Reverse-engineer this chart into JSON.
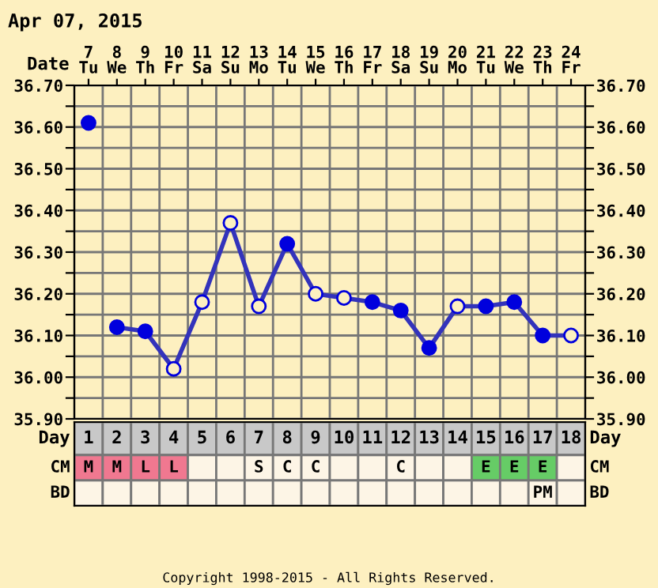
{
  "chart_data": [
    {
      "type": "line",
      "title": "Apr 07, 2015",
      "xlabel": "Date",
      "categories": [
        "7\nTu",
        "8\nWe",
        "9\nTh",
        "10\nFr",
        "11\nSa",
        "12\nSu",
        "13\nMo",
        "14\nTu",
        "15\nWe",
        "16\nTh",
        "17\nFr",
        "18\nSa",
        "19\nSu",
        "20\nMo",
        "21\nTu",
        "22\nWe",
        "23\nTh",
        "24\nFr"
      ],
      "series": [
        {
          "color": "#3333bb",
          "marker": "none",
          "values": [
            null,
            36.12,
            36.11,
            36.02,
            36.18,
            36.37,
            36.17,
            36.32,
            36.2,
            36.19,
            36.18,
            36.16,
            36.07,
            36.17,
            36.17,
            36.18,
            36.1,
            36.1
          ]
        },
        {
          "type": "scatter",
          "color": "#0000dd",
          "marker": "circle",
          "values": [
            36.61,
            36.12,
            36.11,
            null,
            null,
            null,
            null,
            36.32,
            null,
            null,
            36.18,
            36.16,
            36.07,
            null,
            36.17,
            36.18,
            36.1,
            null
          ]
        },
        {
          "type": "scatter",
          "color": "#0000dd",
          "marker": "circle",
          "colors": [
            "#fdf0c0",
            "#fdf0c0",
            "#fdf0c0",
            "#fdf0c0",
            "#fdf0c0",
            "#fdf0c0",
            "#fdf0c0",
            "#fdf0c0",
            "#fdf0c0",
            "#fdf0c0",
            "#fdf0c0",
            "#fdf0c0",
            "#fdf0c0",
            "#fdf0c0",
            "#fdf0c0",
            "#fdf0c0",
            "#fdf0c0",
            "#fdf0c0"
          ],
          "values": [
            null,
            null,
            null,
            36.02,
            36.18,
            36.37,
            36.17,
            null,
            36.2,
            36.19,
            null,
            null,
            null,
            36.17,
            null,
            null,
            null,
            36.1
          ]
        }
      ],
      "ylim": [
        35.9,
        36.7
      ],
      "yticks": [
        {
          "value": 35.9,
          "label": "35.90"
        },
        {
          "value": 35.95,
          "label": null
        },
        {
          "value": 36.0,
          "label": "36.00"
        },
        {
          "value": 36.05,
          "label": null
        },
        {
          "value": 36.1,
          "label": "36.10"
        },
        {
          "value": 36.15,
          "label": null
        },
        {
          "value": 36.2,
          "label": "36.20"
        },
        {
          "value": 36.25,
          "label": null
        },
        {
          "value": 36.3,
          "label": "36.30"
        },
        {
          "value": 36.35,
          "label": null
        },
        {
          "value": 36.4,
          "label": "36.40"
        },
        {
          "value": 36.45,
          "label": null
        },
        {
          "value": 36.5,
          "label": "36.50"
        },
        {
          "value": 36.55,
          "label": null
        },
        {
          "value": 36.6,
          "label": "36.60"
        },
        {
          "value": 36.65,
          "label": null
        },
        {
          "value": 36.7,
          "label": "36.70"
        }
      ],
      "y2lim": [
        35.9,
        36.7
      ],
      "y2ticks": [
        {
          "value": 35.9,
          "label": "35.90"
        },
        {
          "value": 35.95,
          "label": null
        },
        {
          "value": 36.0,
          "label": "36.00"
        },
        {
          "value": 36.05,
          "label": null
        },
        {
          "value": 36.1,
          "label": "36.10"
        },
        {
          "value": 36.15,
          "label": null
        },
        {
          "value": 36.2,
          "label": "36.20"
        },
        {
          "value": 36.25,
          "label": null
        },
        {
          "value": 36.3,
          "label": "36.30"
        },
        {
          "value": 36.35,
          "label": null
        },
        {
          "value": 36.4,
          "label": "36.40"
        },
        {
          "value": 36.45,
          "label": null
        },
        {
          "value": 36.5,
          "label": "36.50"
        },
        {
          "value": 36.55,
          "label": null
        },
        {
          "value": 36.6,
          "label": "36.60"
        },
        {
          "value": 36.65,
          "label": null
        },
        {
          "value": 36.7,
          "label": "36.70"
        }
      ],
      "grid": true
    },
    {
      "type": "heatmap",
      "xlabel": "Day",
      "categories": [
        "1",
        "2",
        "3",
        "4",
        "5",
        "6",
        "7",
        "8",
        "9",
        "10",
        "11",
        "12",
        "13",
        "14",
        "15",
        "16",
        "17",
        "18"
      ],
      "y_categories": [
        "CM",
        "BD"
      ],
      "y2_categories": [
        "CM",
        "BD"
      ],
      "cells": [
        [
          null,
          null,
          null,
          null,
          null,
          null,
          null,
          null,
          null,
          null,
          null,
          null,
          null,
          null,
          null,
          null,
          null,
          null
        ],
        [
          null,
          null,
          null,
          null,
          null,
          null,
          null,
          null,
          null,
          null,
          null,
          null,
          null,
          null,
          null,
          null,
          null,
          null
        ]
      ],
      "cell_labels": [
        [
          "M",
          "M",
          "L",
          "L",
          null,
          null,
          "S",
          "C",
          "C",
          null,
          null,
          "C",
          null,
          null,
          "E",
          "E",
          "E",
          null
        ],
        [
          null,
          null,
          null,
          null,
          null,
          null,
          null,
          null,
          null,
          null,
          null,
          null,
          null,
          null,
          null,
          null,
          "PM",
          null
        ]
      ],
      "colors": [
        [
          "#f07890",
          "#f07890",
          "#f07890",
          "#f07890",
          null,
          null,
          null,
          null,
          null,
          null,
          null,
          null,
          null,
          null,
          "#66cc66",
          "#66cc66",
          "#66cc66",
          null
        ],
        [
          null,
          null,
          null,
          null,
          null,
          null,
          null,
          null,
          null,
          null,
          null,
          null,
          null,
          null,
          null,
          null,
          null,
          null
        ]
      ],
      "annotations": [
        "Copyright 1998-2015 - All Rights Reserved."
      ]
    }
  ]
}
